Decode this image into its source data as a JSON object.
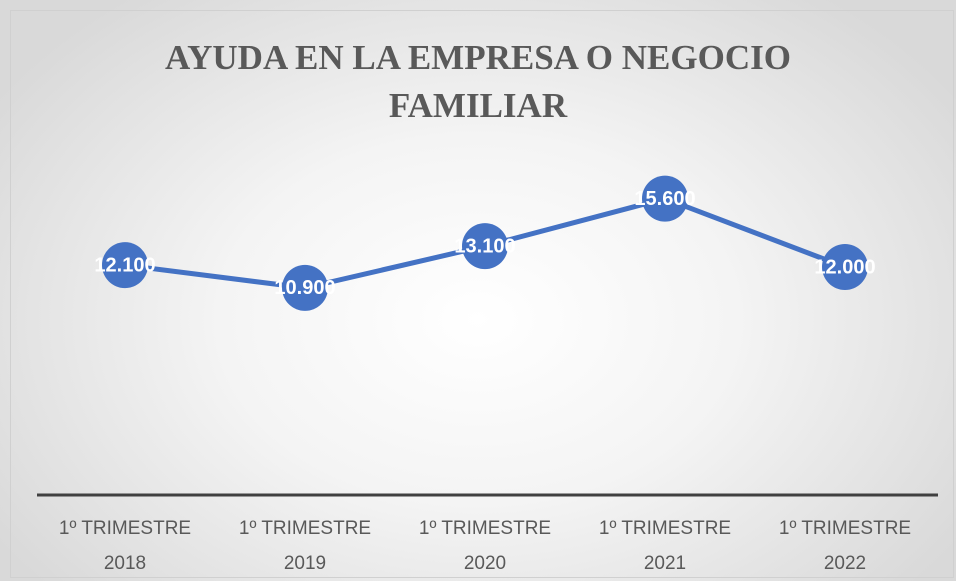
{
  "chart_data": {
    "type": "line",
    "title": "AYUDA EN LA EMPRESA O NEGOCIO FAMILIAR",
    "categories": [
      "1º TRIMESTRE 2018",
      "1º TRIMESTRE 2019",
      "1º TRIMESTRE 2020",
      "1º TRIMESTRE 2021",
      "1º TRIMESTRE 2022"
    ],
    "series": [
      {
        "color": "#4472c4",
        "values": [
          12100,
          10900,
          13100,
          15600,
          12000
        ],
        "value_labels": [
          "12.100",
          "10.900",
          "13.100",
          "15.600",
          "12.000"
        ]
      }
    ],
    "ylim": [
      0,
      18000
    ]
  }
}
